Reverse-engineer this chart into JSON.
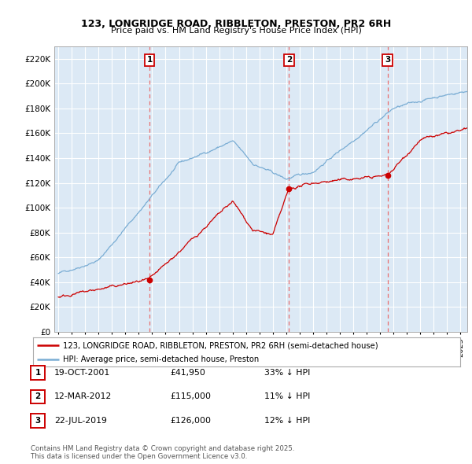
{
  "title1": "123, LONGRIDGE ROAD, RIBBLETON, PRESTON, PR2 6RH",
  "title2": "Price paid vs. HM Land Registry's House Price Index (HPI)",
  "legend_red": "123, LONGRIDGE ROAD, RIBBLETON, PRESTON, PR2 6RH (semi-detached house)",
  "legend_blue": "HPI: Average price, semi-detached house, Preston",
  "footer": "Contains HM Land Registry data © Crown copyright and database right 2025.\nThis data is licensed under the Open Government Licence v3.0.",
  "events": [
    {
      "label": "1",
      "date_str": "19-OCT-2001",
      "price_str": "£41,950",
      "pct_str": "33% ↓ HPI",
      "year": 2001.8
    },
    {
      "label": "2",
      "date_str": "12-MAR-2012",
      "price_str": "£115,000",
      "pct_str": "11% ↓ HPI",
      "year": 2012.2
    },
    {
      "label": "3",
      "date_str": "22-JUL-2019",
      "price_str": "£126,000",
      "pct_str": "12% ↓ HPI",
      "year": 2019.55
    }
  ],
  "event_prices": [
    41950,
    115000,
    126000
  ],
  "ylim": [
    0,
    230000
  ],
  "yticks": [
    0,
    20000,
    40000,
    60000,
    80000,
    100000,
    120000,
    140000,
    160000,
    180000,
    200000,
    220000
  ],
  "xlim_start": 1994.7,
  "xlim_end": 2025.5,
  "plot_bg": "#dce9f5",
  "grid_color": "#ffffff",
  "red_color": "#cc0000",
  "blue_color": "#7aadd4",
  "dashed_color": "#e87070"
}
